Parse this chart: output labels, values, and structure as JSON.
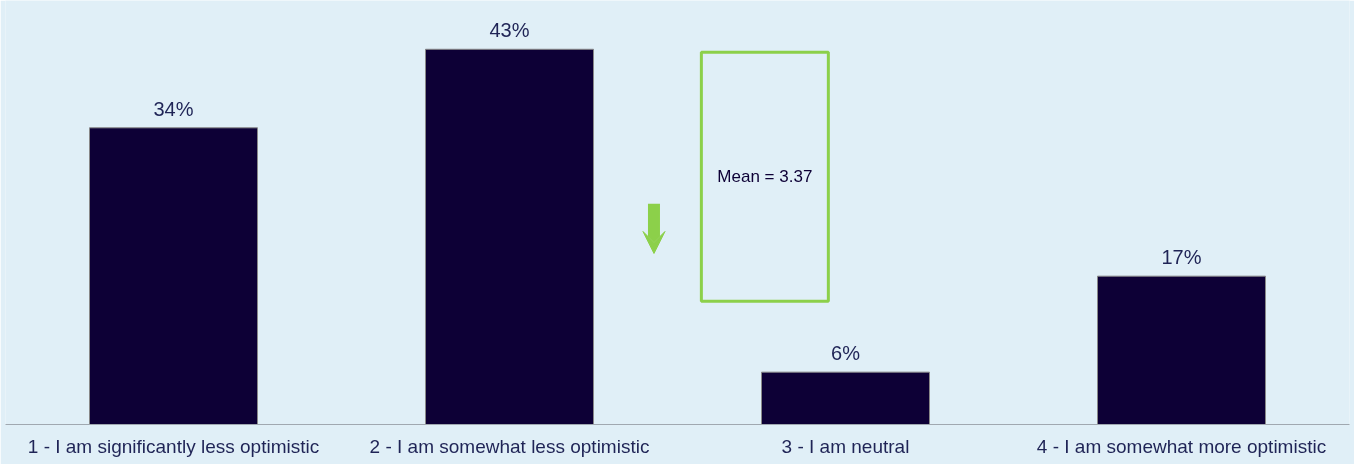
{
  "chart_data": {
    "type": "bar",
    "categories": [
      "1 - I am significantly less optimistic",
      "2 - I am somewhat less optimistic",
      "3 - I am neutral",
      "4 - I am somewhat more optimistic"
    ],
    "values": [
      34,
      43,
      6,
      17
    ],
    "value_labels": [
      "34%",
      "43%",
      "6%",
      "17%"
    ],
    "color": "#0d0036",
    "annotations": [
      "Mean = 3.37"
    ],
    "grid": false
  }
}
